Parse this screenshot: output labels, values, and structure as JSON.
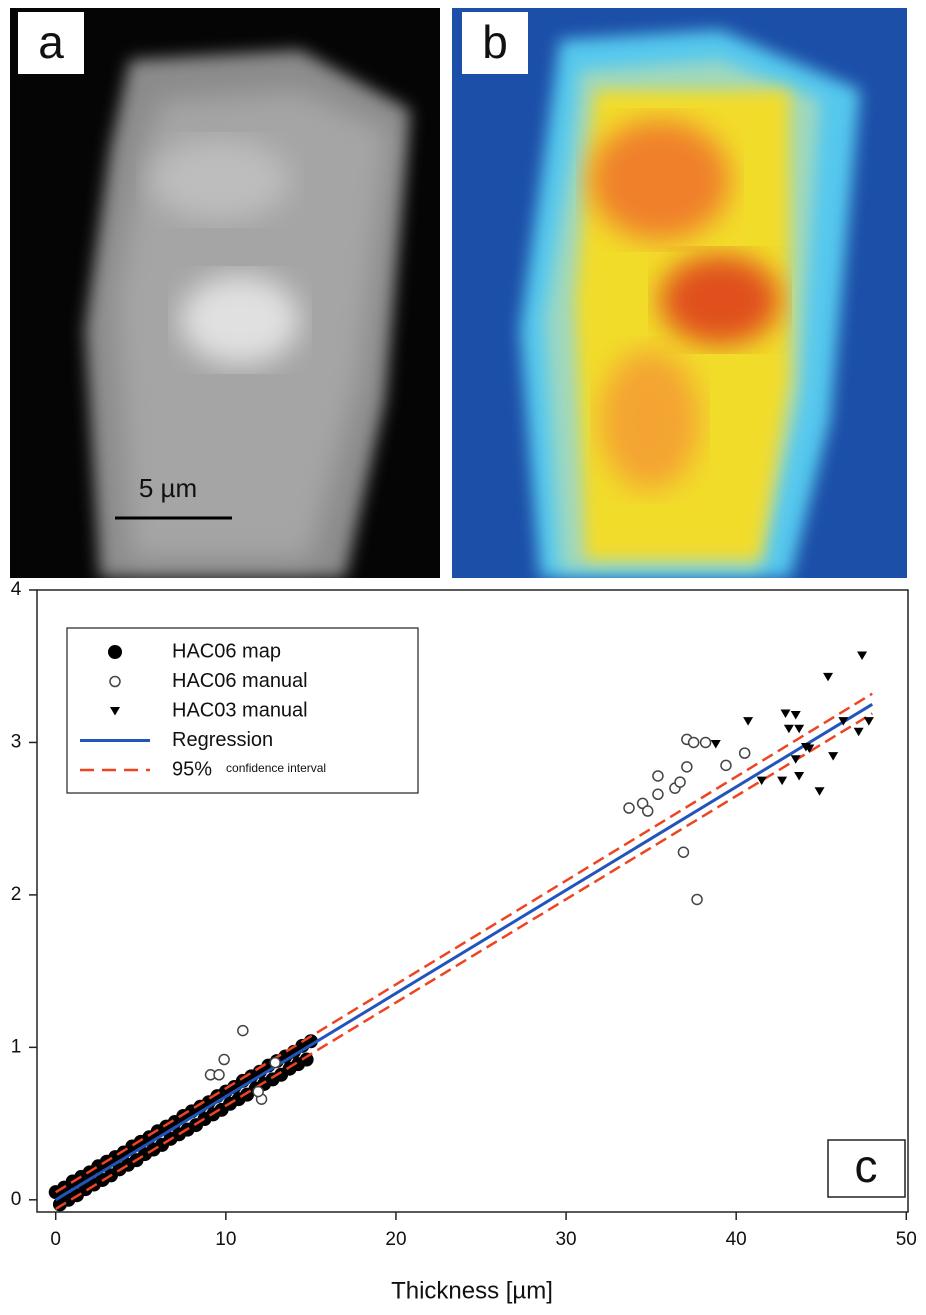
{
  "panel_a": {
    "label": "a",
    "scale_bar": "5 µm"
  },
  "panel_b": {
    "label": "b"
  },
  "chart_data": {
    "type": "scatter",
    "panel_label": "c",
    "xlabel": "Thickness [µm]",
    "xlim": [
      -1.1,
      50.1
    ],
    "ylim": [
      -0.08,
      4.0
    ],
    "xticks": [
      0,
      10,
      20,
      30,
      40,
      50
    ],
    "yticks": [
      0,
      1,
      2,
      3,
      4
    ],
    "legend": "upper left",
    "series": [
      {
        "name": "HAC06 map",
        "marker": "filled-circle",
        "color": "#000000",
        "x": [
          0,
          0.5,
          1,
          1.5,
          2,
          2.5,
          3,
          3.5,
          4,
          4.5,
          5,
          5.5,
          6,
          6.5,
          7,
          7.5,
          8,
          8.5,
          9,
          9.5,
          10,
          10.5,
          11,
          11.5,
          12,
          12.5,
          13,
          13.5,
          14,
          14.5,
          15,
          0.25,
          0.75,
          1.25,
          1.75,
          2.25,
          2.75,
          3.25,
          3.75,
          4.25,
          4.75,
          5.25,
          5.75,
          6.25,
          6.75,
          7.25,
          7.75,
          8.25,
          8.75,
          9.25,
          9.75,
          10.25,
          10.75,
          11.25,
          11.75,
          12.25,
          12.75,
          13.25,
          13.75,
          14.25,
          14.75
        ],
        "values": [
          0.05,
          0.08,
          0.12,
          0.15,
          0.18,
          0.22,
          0.25,
          0.28,
          0.31,
          0.35,
          0.38,
          0.41,
          0.45,
          0.48,
          0.51,
          0.55,
          0.58,
          0.61,
          0.64,
          0.68,
          0.71,
          0.74,
          0.78,
          0.81,
          0.84,
          0.88,
          0.91,
          0.94,
          0.97,
          1.01,
          1.04,
          -0.03,
          0.0,
          0.03,
          0.07,
          0.1,
          0.13,
          0.16,
          0.2,
          0.23,
          0.26,
          0.3,
          0.33,
          0.36,
          0.4,
          0.43,
          0.46,
          0.49,
          0.53,
          0.56,
          0.59,
          0.63,
          0.66,
          0.69,
          0.73,
          0.76,
          0.79,
          0.82,
          0.86,
          0.89,
          0.92
        ]
      },
      {
        "name": "HAC06 manual",
        "marker": "open-circle",
        "color": "#444444",
        "x": [
          33.7,
          34.5,
          34.8,
          35.4,
          35.4,
          36.4,
          36.7,
          36.9,
          37.1,
          37.1,
          37.5,
          37.7,
          38.2,
          39.4,
          40.5,
          11.0,
          9.9,
          9.1,
          9.6,
          12.1,
          11.9,
          12.9
        ],
        "values": [
          2.57,
          2.6,
          2.55,
          2.78,
          2.66,
          2.7,
          2.74,
          2.28,
          2.84,
          3.02,
          3.0,
          1.97,
          3.0,
          2.85,
          2.93,
          1.11,
          0.92,
          0.82,
          0.82,
          0.66,
          0.71,
          0.9
        ]
      },
      {
        "name": "HAC03 manual",
        "marker": "triangle-down",
        "color": "#000000",
        "x": [
          47.4,
          45.4,
          40.7,
          42.9,
          43.5,
          43.1,
          43.7,
          38.8,
          41.5,
          42.7,
          43.7,
          43.5,
          44.1,
          44.3,
          45.7,
          44.9,
          46.3,
          47.8,
          47.2
        ],
        "values": [
          3.57,
          3.43,
          3.14,
          3.19,
          3.18,
          3.09,
          3.09,
          2.99,
          2.75,
          2.75,
          2.78,
          2.89,
          2.97,
          2.96,
          2.91,
          2.68,
          3.14,
          3.14,
          3.07
        ]
      },
      {
        "name": "Regression",
        "marker": "line",
        "color": "#2255bb",
        "x": [
          0,
          48
        ],
        "values": [
          0.0,
          3.25
        ]
      },
      {
        "name": "95%",
        "name_small": "confidence interval",
        "marker": "dashed-band",
        "color": "#ee4422",
        "x": [
          0,
          48
        ],
        "upper": [
          0.05,
          3.32
        ],
        "lower": [
          -0.06,
          3.19
        ]
      }
    ]
  }
}
